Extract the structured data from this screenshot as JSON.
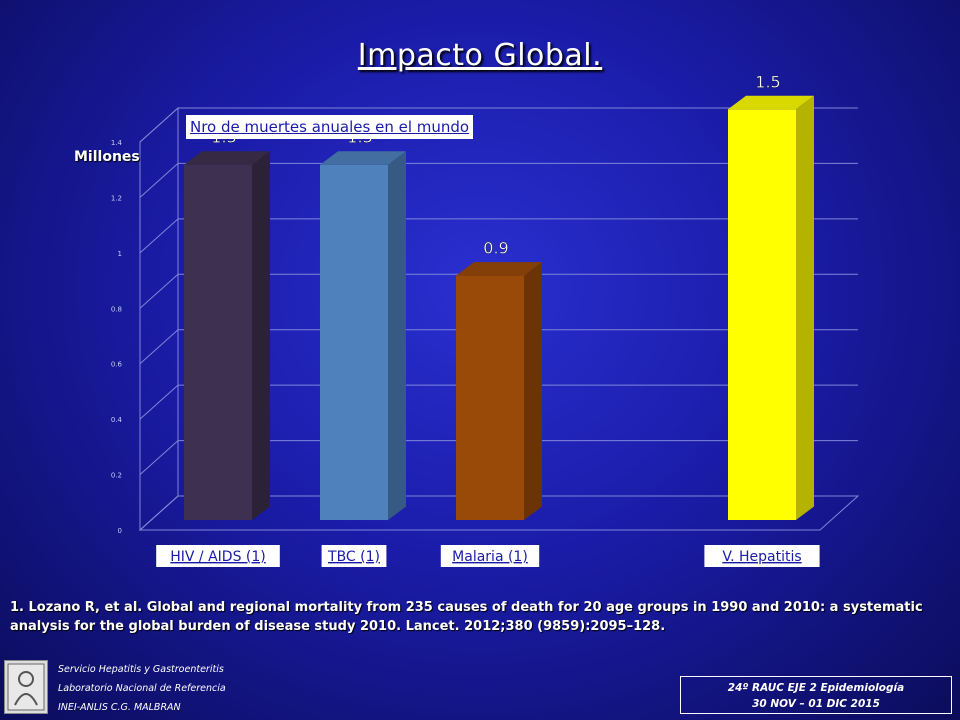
{
  "slide": {
    "title": "Impacto Global.",
    "subtitle": "Nro de muertes anuales en el mundo",
    "unit_label": "Millones",
    "footnote": "1. Lozano R, et al. Global and regional mortality from 235 causes of death for 20 age groups in 1990 and 2010: a systematic analysis for the global burden of disease study 2010. Lancet. 2012;380 (9859):2095–128.",
    "footer_left": [
      "Servicio Hepatitis y Gastroenteritis",
      "Laboratorio Nacional de Referencia",
      "INEI-ANLIS C.G. MALBRAN"
    ],
    "footer_right": [
      "24º RAUC EJE 2 Epidemiología",
      "30 NOV – 01 DIC 2015"
    ]
  },
  "chart_data": {
    "type": "bar",
    "categories": [
      "HIV / AIDS (1)",
      "TBC (1)",
      "Malaria (1)",
      "",
      "V.  Hepatitis"
    ],
    "values": [
      1.3,
      1.3,
      0.9,
      null,
      1.5
    ],
    "data_labels": [
      "1.3",
      "1.3",
      "0.9",
      "",
      "1.5"
    ],
    "ylim": [
      0,
      1.4
    ],
    "yticks": [
      "0",
      "0.2",
      "0.4",
      "0.6",
      "0.8",
      "1",
      "1.2",
      "1.4"
    ],
    "colors": [
      "#3e3050",
      "#4f81bd",
      "#9a4a08",
      "",
      "#ffff00"
    ],
    "grid": true
  }
}
